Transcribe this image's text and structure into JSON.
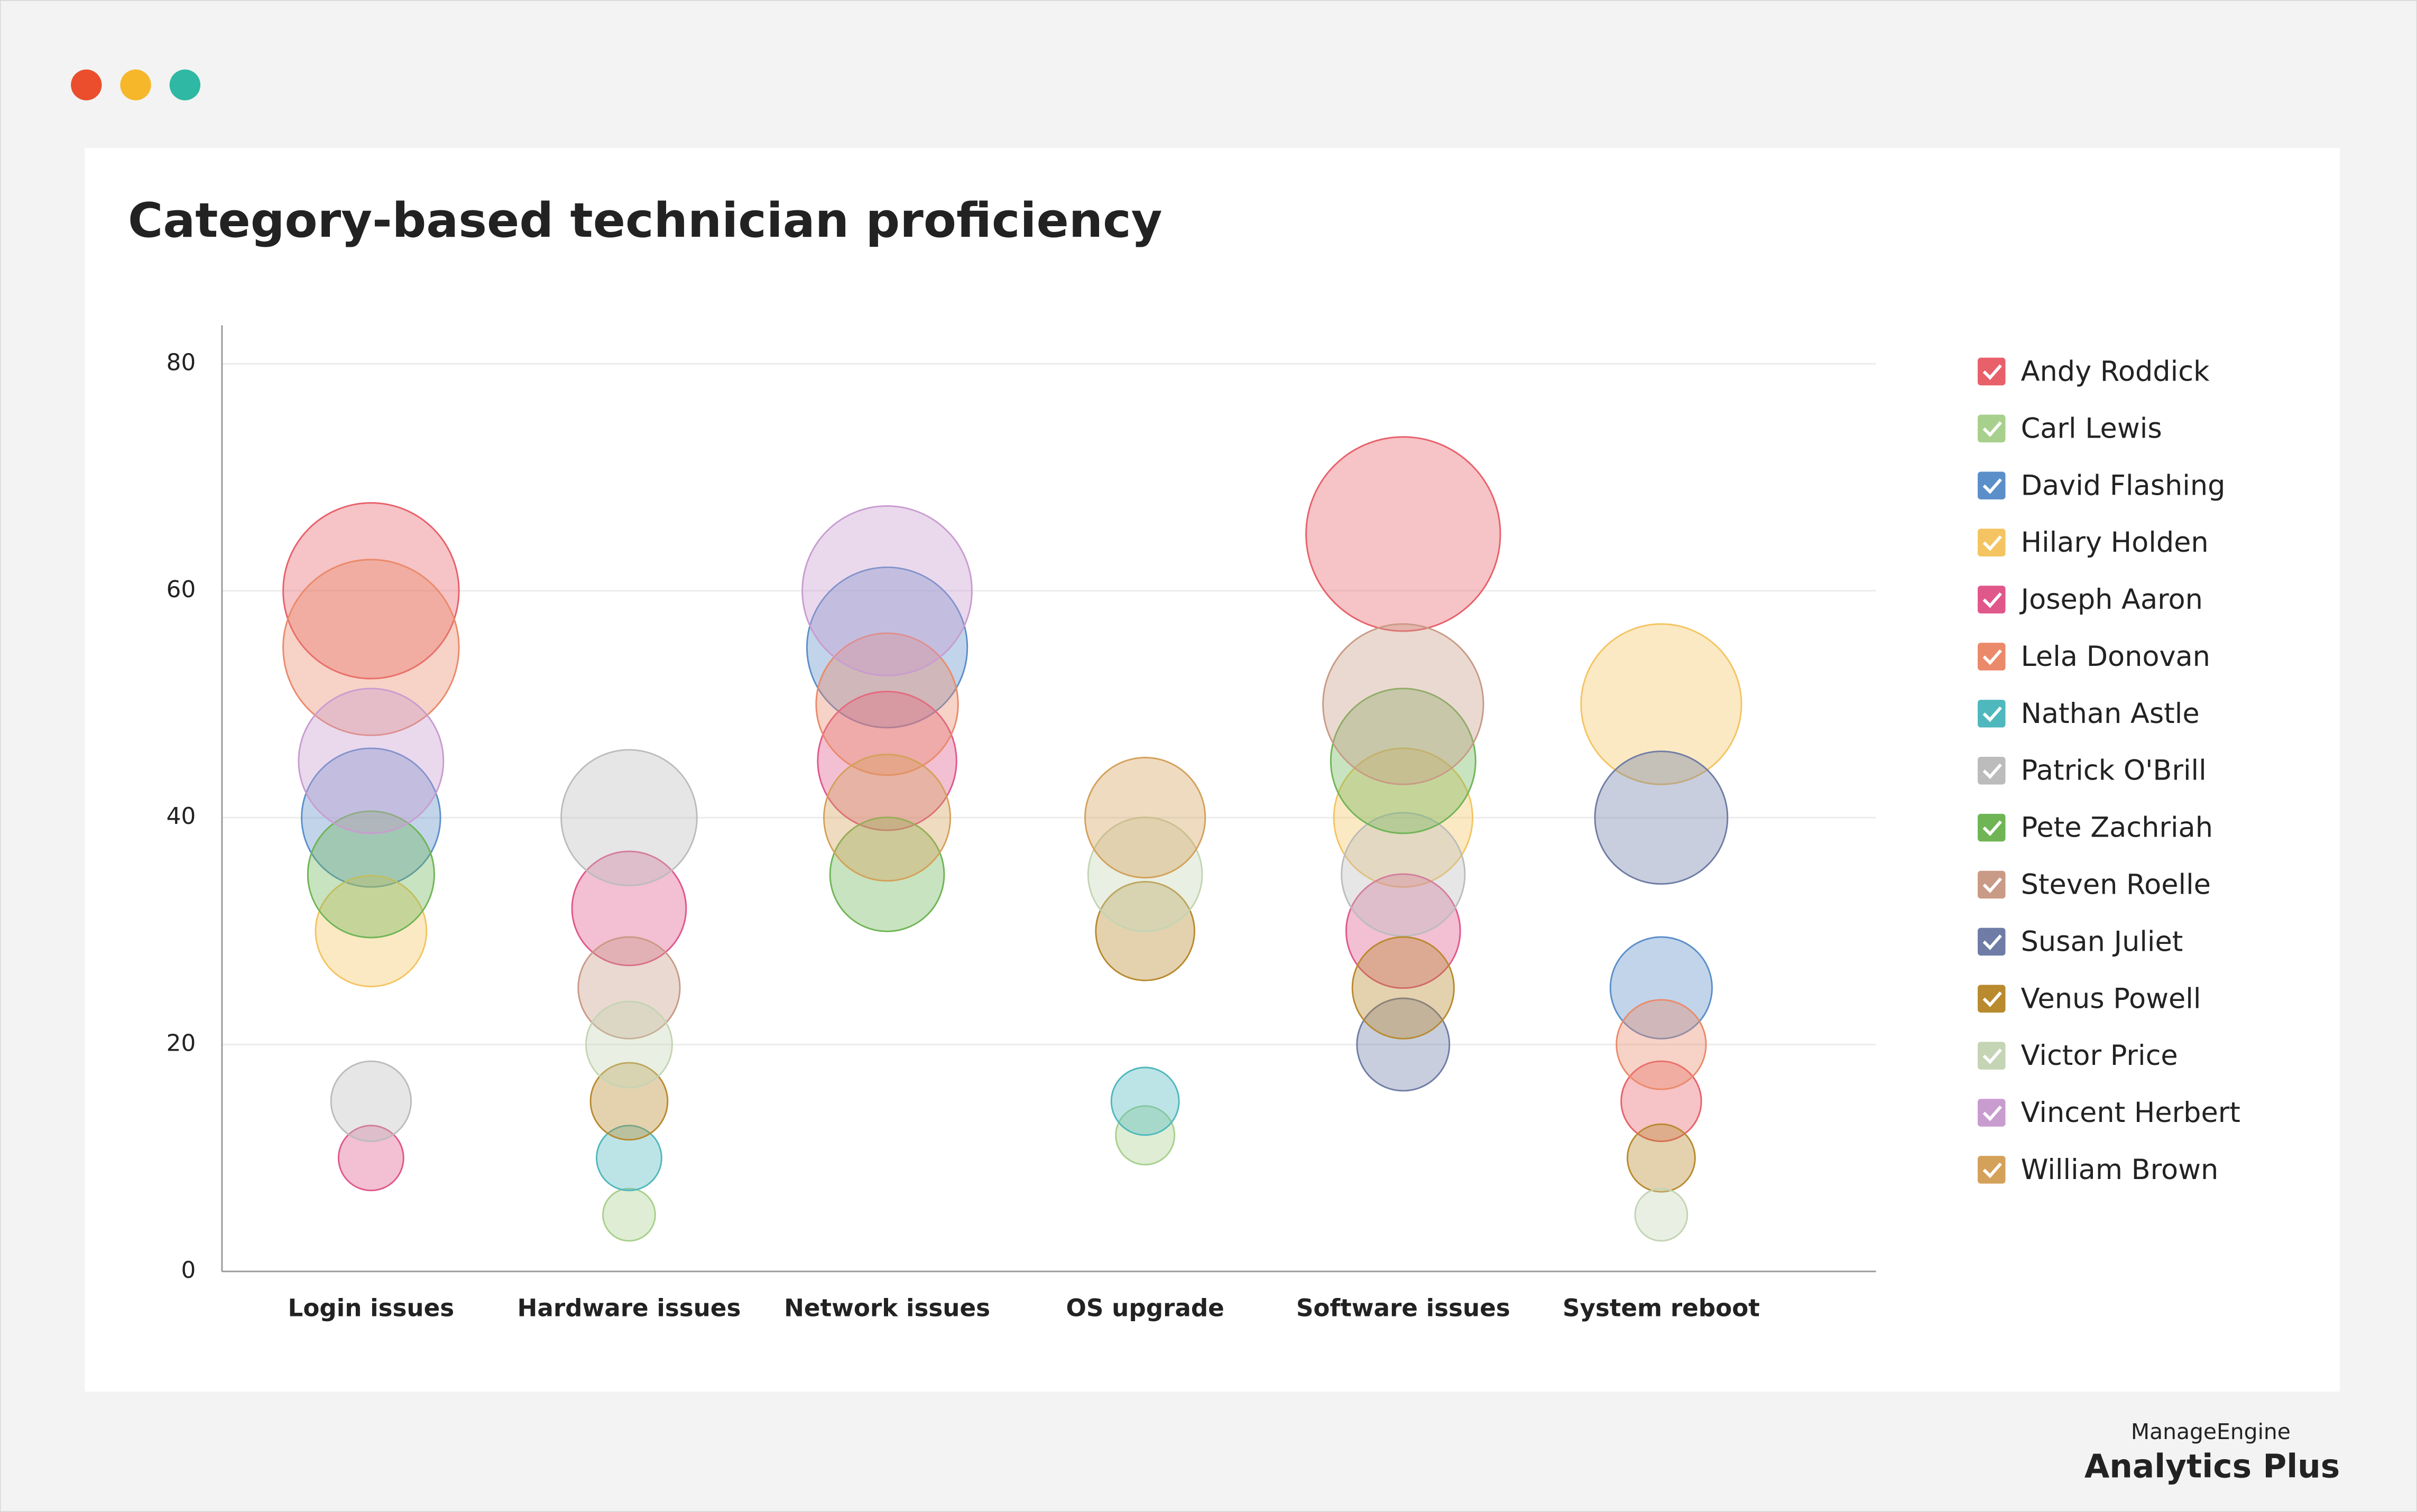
{
  "chart_data": {
    "type": "bubble",
    "title": "Category-based technician proficiency",
    "categories": [
      "Login issues",
      "Hardware issues",
      "Network issues",
      "OS upgrade",
      "Software issues",
      "System reboot"
    ],
    "ylim": [
      0,
      80
    ],
    "yticks": [
      0,
      20,
      40,
      60,
      80
    ],
    "grid": true,
    "legend": "right",
    "series": [
      {
        "name": "Andy Roddick",
        "color": "#e8606a",
        "values": [
          60,
          null,
          null,
          null,
          65,
          15
        ],
        "sizes": [
          520,
          null,
          null,
          null,
          635,
          108
        ]
      },
      {
        "name": "Carl Lewis",
        "color": "#a8d08d",
        "values": [
          null,
          5,
          null,
          12,
          null,
          null
        ],
        "sizes": [
          null,
          46,
          null,
          58,
          null,
          null
        ]
      },
      {
        "name": "David Flashing",
        "color": "#5b8fc9",
        "values": [
          40,
          null,
          55,
          null,
          null,
          25
        ],
        "sizes": [
          324,
          null,
          433,
          null,
          null,
          174
        ]
      },
      {
        "name": "Hilary Holden",
        "color": "#f4c462",
        "values": [
          30,
          null,
          null,
          null,
          40,
          50
        ],
        "sizes": [
          207,
          null,
          null,
          null,
          324,
          433
        ]
      },
      {
        "name": "Joseph Aaron",
        "color": "#e0578a",
        "values": [
          10,
          32,
          45,
          null,
          30,
          null
        ],
        "sizes": [
          71,
          219,
          324,
          null,
          219,
          null
        ]
      },
      {
        "name": "Lela Donovan",
        "color": "#eb8a6a",
        "values": [
          55,
          null,
          50,
          null,
          null,
          20
        ],
        "sizes": [
          520,
          null,
          339,
          null,
          null,
          135
        ]
      },
      {
        "name": "Nathan Astle",
        "color": "#4fb8bd",
        "values": [
          null,
          10,
          null,
          15,
          null,
          null
        ],
        "sizes": [
          null,
          71,
          null,
          77,
          null,
          null
        ]
      },
      {
        "name": "Patrick O'Brill",
        "color": "#bcbcbc",
        "values": [
          15,
          40,
          null,
          null,
          35,
          null
        ],
        "sizes": [
          108,
          310,
          null,
          null,
          256,
          null
        ]
      },
      {
        "name": "Pete Zachriah",
        "color": "#6fb556",
        "values": [
          35,
          null,
          35,
          null,
          45,
          null
        ],
        "sizes": [
          269,
          null,
          219,
          null,
          353,
          null
        ]
      },
      {
        "name": "Steven Roelle",
        "color": "#c99a86",
        "values": [
          null,
          25,
          null,
          null,
          50,
          null
        ],
        "sizes": [
          null,
          174,
          null,
          null,
          433,
          null
        ]
      },
      {
        "name": "Susan Juliet",
        "color": "#6f7da6",
        "values": [
          null,
          null,
          null,
          null,
          20,
          40
        ],
        "sizes": [
          null,
          null,
          null,
          null,
          144,
          296
        ]
      },
      {
        "name": "Venus Powell",
        "color": "#b98a2e",
        "values": [
          null,
          15,
          null,
          30,
          25,
          10
        ],
        "sizes": [
          null,
          100,
          null,
          164,
          174,
          77
        ]
      },
      {
        "name": "Victor Price",
        "color": "#c4d4b4",
        "values": [
          null,
          20,
          null,
          35,
          null,
          5
        ],
        "sizes": [
          null,
          125,
          null,
          219,
          null,
          46
        ]
      },
      {
        "name": "Vincent Herbert",
        "color": "#c99cd0",
        "values": [
          45,
          null,
          60,
          null,
          null,
          null
        ],
        "sizes": [
          353,
          null,
          484,
          null,
          null,
          null
        ]
      },
      {
        "name": "William Brown",
        "color": "#d4a15a",
        "values": [
          null,
          null,
          40,
          40,
          null,
          null
        ],
        "sizes": [
          null,
          null,
          269,
          243,
          null,
          null
        ]
      }
    ]
  },
  "branding": {
    "company": "ManageEngine",
    "product": "Analytics Plus"
  }
}
